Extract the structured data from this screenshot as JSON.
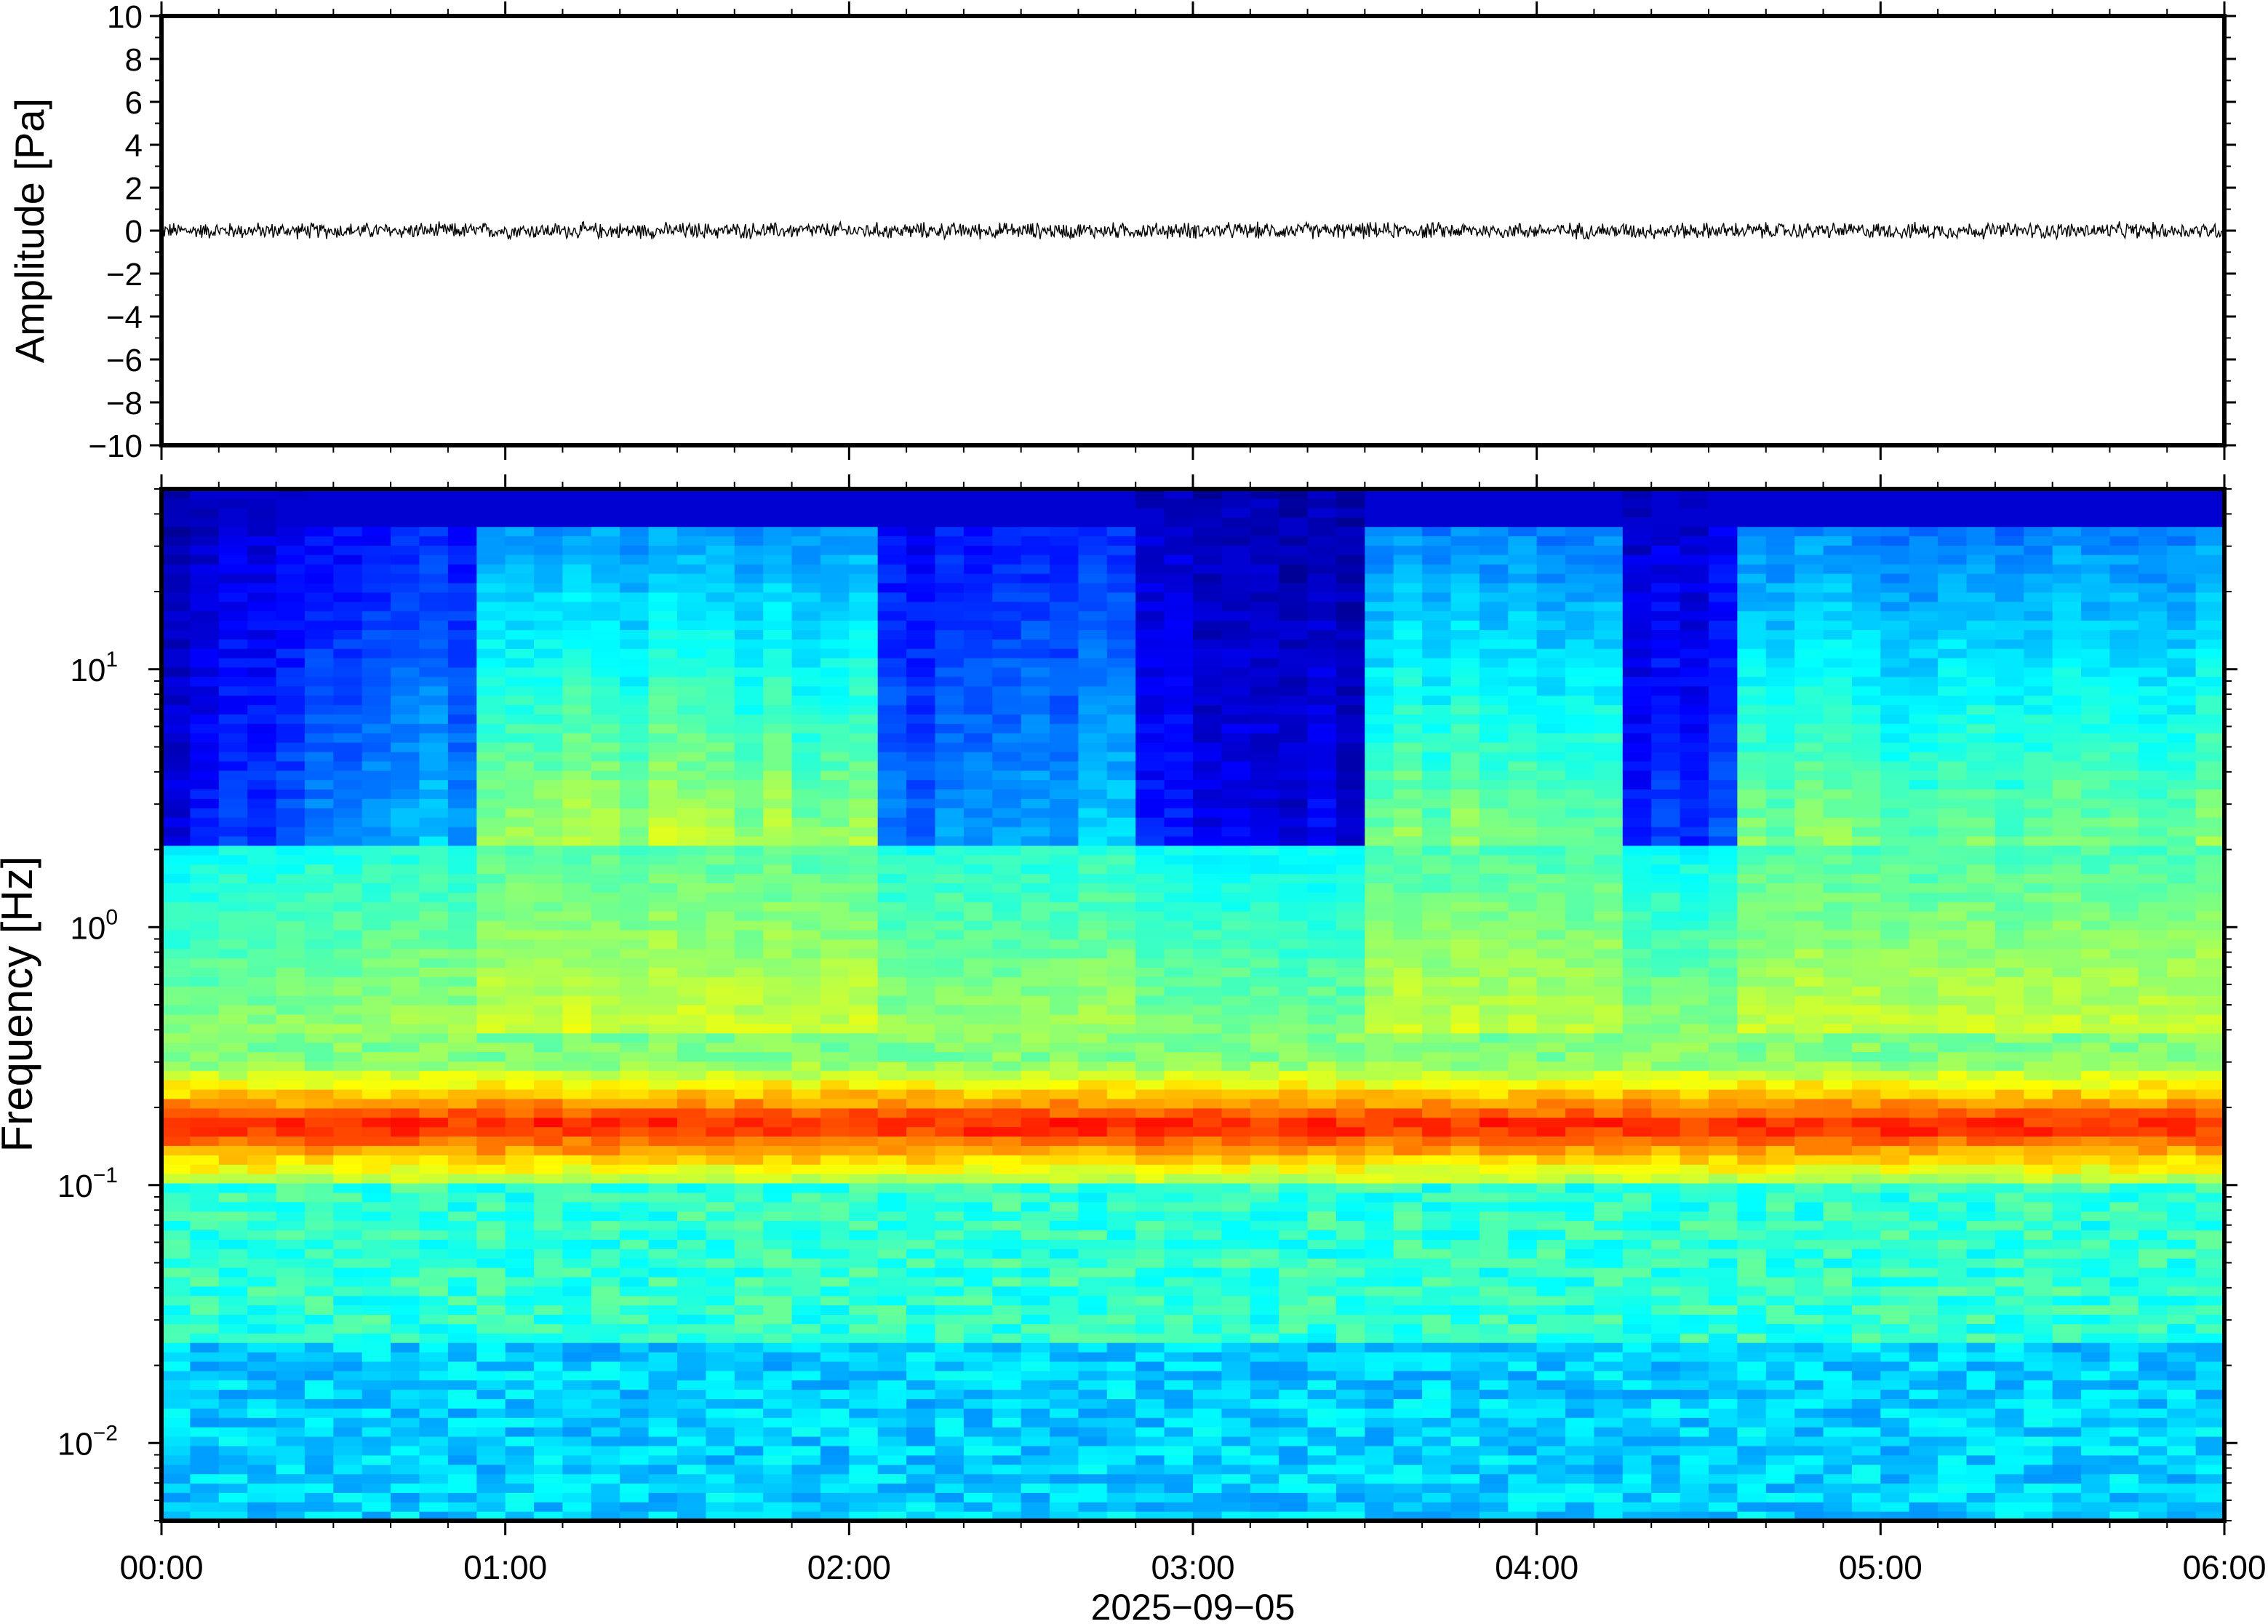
{
  "chart_data": [
    {
      "type": "line",
      "title": "",
      "ylabel": "Amplitude [Pa]",
      "xlabel": "",
      "ylim": [
        -10,
        10
      ],
      "yticks": [
        10,
        8,
        6,
        4,
        2,
        0,
        -2,
        -4,
        -6,
        -8,
        -10
      ],
      "ytick_labels": [
        "10",
        "8",
        "6",
        "4",
        "2",
        "0",
        "−2",
        "−4",
        "−6",
        "−8",
        "−10"
      ],
      "xlim": [
        "00:00",
        "06:00"
      ],
      "grid": false,
      "series": [
        {
          "values_description_free": true,
          "baseline": 0,
          "noise_amplitude": 0.3,
          "color": "#000000"
        }
      ]
    },
    {
      "type": "heatmap",
      "title": "",
      "ylabel": "Frequency [Hz]",
      "xlabel": "2025−09−05",
      "yscale": "log",
      "ylim": [
        0.005,
        50
      ],
      "yticks": [
        {
          "value": 10,
          "base": "10",
          "exp": "1"
        },
        {
          "value": 1,
          "base": "10",
          "exp": "0"
        },
        {
          "value": 0.1,
          "base": "10",
          "exp": "−1"
        },
        {
          "value": 0.01,
          "base": "10",
          "exp": "−2"
        }
      ],
      "xlim": [
        "00:00",
        "06:00"
      ],
      "xtick_labels": [
        "00:00",
        "01:00",
        "02:00",
        "03:00",
        "04:00",
        "05:00",
        "06:00"
      ],
      "colormap": "jet",
      "microseism_peak_hz": 0.17,
      "grid": false
    }
  ]
}
